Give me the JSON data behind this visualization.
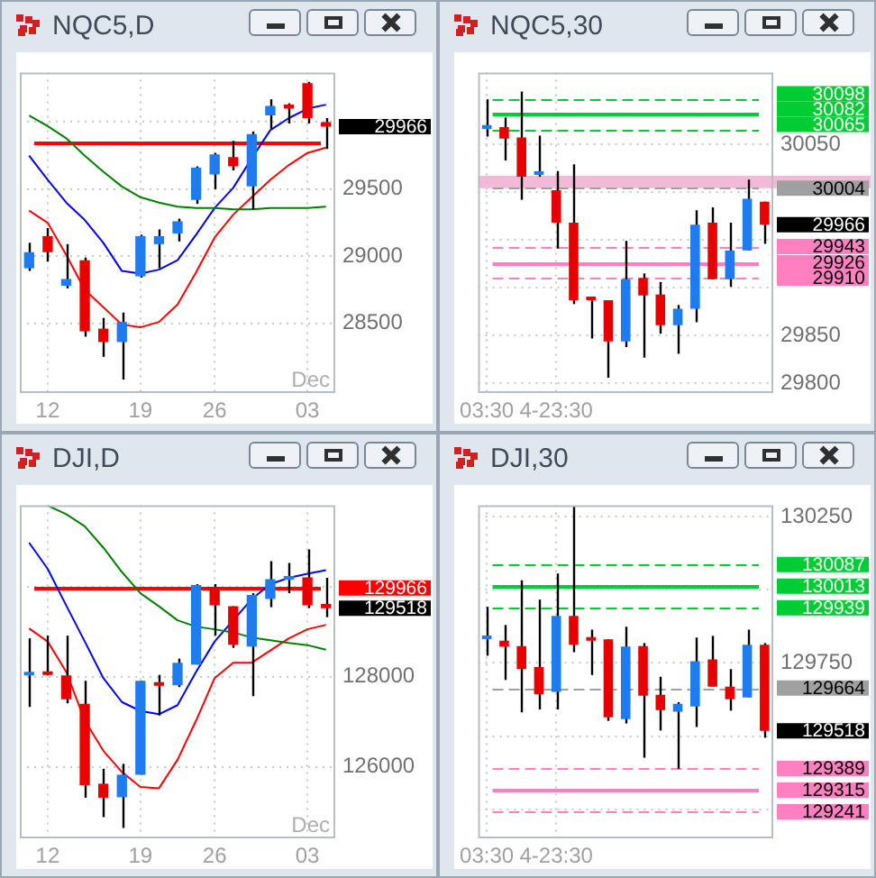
{
  "chart_data": [
    {
      "type": "candlestick",
      "title": "NQC5,D",
      "categories": [
        null,
        "12",
        null,
        null,
        null,
        null,
        "19",
        null,
        null,
        null,
        "26",
        null,
        null,
        null,
        null,
        "03",
        null
      ],
      "ohlc": [
        [
          28910,
          29100,
          28890,
          29030
        ],
        [
          29150,
          29210,
          28960,
          29030
        ],
        [
          28780,
          29090,
          28760,
          28830
        ],
        [
          28970,
          28990,
          28400,
          28440
        ],
        [
          28460,
          28540,
          28250,
          28360
        ],
        [
          28360,
          28580,
          28080,
          28510
        ],
        [
          28850,
          29160,
          28840,
          29150
        ],
        [
          29090,
          29200,
          28910,
          29150
        ],
        [
          29170,
          29280,
          29110,
          29260
        ],
        [
          29420,
          29670,
          29390,
          29660
        ],
        [
          29610,
          29770,
          29500,
          29760
        ],
        [
          29740,
          29860,
          29640,
          29670
        ],
        [
          29520,
          29930,
          29350,
          29910
        ],
        [
          30050,
          30170,
          29950,
          30120
        ],
        [
          30130,
          30140,
          29990,
          30100
        ],
        [
          30290,
          30300,
          29990,
          30030
        ],
        [
          30000,
          30030,
          29800,
          29966
        ]
      ],
      "colors": [
        "#1e7bf0",
        "#e80000",
        "#1e7bf0",
        "#e80000",
        "#e80000",
        "#1e7bf0",
        "#1e7bf0",
        "#1e7bf0",
        "#1e7bf0",
        "#1e7bf0",
        "#1e7bf0",
        "#e80000",
        "#1e7bf0",
        "#1e7bf0",
        "#e80000",
        "#e80000",
        "#e80000"
      ],
      "series": [
        {
          "type": "line",
          "color": "#008000",
          "values": [
            30050,
            29970,
            29880,
            29750,
            29630,
            29520,
            29440,
            29400,
            29370,
            29360,
            29360,
            29350,
            29350,
            29360,
            29360,
            29360,
            29370
          ]
        },
        {
          "type": "line",
          "color": "#0000ff",
          "values": [
            29750,
            29570,
            29400,
            29270,
            29100,
            28890,
            28870,
            28900,
            28970,
            29160,
            29360,
            29510,
            29730,
            29940,
            30030,
            30100,
            30130
          ]
        },
        {
          "type": "line",
          "color": "#ff0000",
          "values": [
            29340,
            29250,
            29010,
            28750,
            28620,
            28490,
            28470,
            28510,
            28640,
            28880,
            29140,
            29310,
            29440,
            29570,
            29680,
            29770,
            29810
          ]
        }
      ],
      "ylim": [
        27980,
        30370
      ],
      "yticks": [
        28500,
        29000,
        29500,
        {
          "value": 30000,
          "label": null
        }
      ],
      "grid": true,
      "value_labels": [
        null,
        null,
        null,
        null,
        null,
        null,
        null,
        null,
        null,
        null,
        null,
        null,
        null,
        null,
        null,
        null,
        "29966"
      ],
      "ref_lines": [
        {
          "axis": "y",
          "value": 29850,
          "color": "#ff0000",
          "line_style": "solid"
        }
      ],
      "annotations": [
        "Dec"
      ]
    },
    {
      "type": "candlestick",
      "title": "NQC5,30",
      "categories": [
        "03:30",
        null,
        null,
        null,
        "4-23:30",
        null,
        null,
        null,
        null,
        null,
        null,
        null,
        null,
        null,
        null,
        null,
        null
      ],
      "ohlc": [
        [
          30066,
          30097,
          30058,
          30070
        ],
        [
          30068,
          30078,
          30033,
          30056
        ],
        [
          30057,
          30105,
          29992,
          30016
        ],
        [
          30018,
          30059,
          30016,
          30021
        ],
        [
          30002,
          30022,
          29941,
          29968
        ],
        [
          29968,
          30029,
          29883,
          29887
        ],
        [
          29889,
          29889,
          29847,
          29887
        ],
        [
          29887,
          29887,
          29806,
          29844
        ],
        [
          29844,
          29949,
          29838,
          29909
        ],
        [
          29910,
          29915,
          29827,
          29892
        ],
        [
          29893,
          29906,
          29852,
          29861
        ],
        [
          29861,
          29882,
          29831,
          29878
        ],
        [
          29878,
          29981,
          29864,
          29966
        ],
        [
          29968,
          29984,
          29909,
          29909
        ],
        [
          29909,
          29968,
          29901,
          29939
        ],
        [
          29939,
          30013,
          29939,
          29993
        ],
        [
          29990,
          29990,
          29946,
          29966
        ]
      ],
      "colors": [
        "#1e7bf0",
        "#e80000",
        "#e80000",
        "#1e7bf0",
        "#e80000",
        "#e80000",
        "#e80000",
        "#e80000",
        "#1e7bf0",
        "#e80000",
        "#e80000",
        "#1e7bf0",
        "#1e7bf0",
        "#e80000",
        "#1e7bf0",
        "#1e7bf0",
        "#e80000"
      ],
      "ylim": [
        29790,
        30125
      ],
      "yticks": [
        29800,
        29850,
        {
          "value": 29900,
          "label": null
        },
        {
          "value": 29950,
          "label": null
        },
        {
          "value": 30000,
          "label": null
        },
        30050
      ],
      "grid": true,
      "ref_lines": [
        {
          "axis": "y",
          "value": 30098,
          "label": "30098",
          "color": "#00cc33",
          "line_style": "dashed"
        },
        {
          "axis": "y",
          "value": 30082,
          "label": "30082",
          "color": "#00cc33",
          "line_style": "solid"
        },
        {
          "axis": "y",
          "value": 30065,
          "label": "30065",
          "color": "#00cc33",
          "line_style": "dashed"
        },
        {
          "axis": "y",
          "value": 30004,
          "label": "30004",
          "color": "#a0a0a0",
          "line_style": "dashed"
        },
        {
          "axis": "y",
          "value": 29943,
          "label": "29943",
          "color": "#ff80c0",
          "line_style": "dashed"
        },
        {
          "axis": "y",
          "value": 29926,
          "label": "29926",
          "color": "#ff80c0",
          "line_style": "solid"
        },
        {
          "axis": "y",
          "value": 29910,
          "label": "29910",
          "color": "#ff80c0",
          "line_style": "dashed"
        }
      ],
      "value_labels": [
        null,
        null,
        null,
        null,
        null,
        null,
        null,
        null,
        null,
        null,
        null,
        null,
        null,
        null,
        null,
        null,
        "29966"
      ],
      "bands": [
        {
          "axis": "y",
          "from": 30004,
          "to": 30017,
          "color": "#f0a8cc"
        }
      ]
    },
    {
      "type": "candlestick",
      "title": "DJI,D",
      "categories": [
        null,
        "12",
        null,
        null,
        null,
        null,
        "19",
        null,
        null,
        null,
        "26",
        null,
        null,
        null,
        null,
        "03",
        null
      ],
      "ohlc": [
        [
          128030,
          128850,
          127330,
          128080
        ],
        [
          128090,
          128910,
          128030,
          128040
        ],
        [
          128030,
          128910,
          127410,
          127500
        ],
        [
          127400,
          127910,
          125320,
          125600
        ],
        [
          125630,
          125960,
          124890,
          125320
        ],
        [
          125330,
          126070,
          124650,
          125830
        ],
        [
          125830,
          127910,
          125830,
          127910
        ],
        [
          127850,
          128040,
          127140,
          127800
        ],
        [
          127810,
          128400,
          127770,
          128310
        ],
        [
          128270,
          130050,
          128270,
          130030
        ],
        [
          129990,
          130050,
          128910,
          129580
        ],
        [
          129560,
          129560,
          128640,
          128710
        ],
        [
          128670,
          129850,
          127570,
          129810
        ],
        [
          129720,
          130560,
          129540,
          130160
        ],
        [
          130150,
          130520,
          129850,
          130200
        ],
        [
          130200,
          130820,
          129520,
          129580
        ],
        [
          129610,
          130190,
          129320,
          129518
        ]
      ],
      "colors": [
        "#1e7bf0",
        "#e80000",
        "#e80000",
        "#e80000",
        "#e80000",
        "#1e7bf0",
        "#1e7bf0",
        "#e80000",
        "#1e7bf0",
        "#1e7bf0",
        "#e80000",
        "#e80000",
        "#1e7bf0",
        "#1e7bf0",
        "#1e7bf0",
        "#e80000",
        "#e80000"
      ],
      "series": [
        {
          "type": "line",
          "color": "#008000",
          "values": [
            null,
            131790,
            131600,
            131330,
            130860,
            130320,
            129850,
            129560,
            129250,
            129110,
            129050,
            128980,
            128870,
            128810,
            128750,
            128700,
            128600
          ]
        },
        {
          "type": "line",
          "color": "#0000ff",
          "values": [
            130970,
            130390,
            129580,
            128780,
            127970,
            127440,
            127240,
            127170,
            127370,
            128110,
            128780,
            129250,
            129720,
            130050,
            130190,
            130280,
            130360
          ]
        },
        {
          "type": "line",
          "color": "#ff0000",
          "values": [
            129070,
            128780,
            128110,
            127030,
            126360,
            125890,
            125560,
            125530,
            126160,
            127030,
            127970,
            128310,
            128310,
            128580,
            128850,
            129050,
            129150
          ]
        }
      ],
      "ylim": [
        124420,
        131800
      ],
      "yticks": [
        126000,
        128000,
        {
          "value": 130000,
          "label": null
        }
      ],
      "grid": true,
      "ref_lines": [
        {
          "axis": "y",
          "value": 129966,
          "label": "129966",
          "color": "#ff0000",
          "line_style": "solid"
        }
      ],
      "value_labels": [
        null,
        null,
        null,
        null,
        null,
        null,
        null,
        null,
        null,
        null,
        null,
        null,
        null,
        null,
        null,
        null,
        "129518"
      ],
      "annotations": [
        "Dec"
      ]
    },
    {
      "type": "candlestick",
      "title": "DJI,30",
      "categories": [
        "03:30",
        null,
        null,
        null,
        "4-23:30",
        null,
        null,
        null,
        null,
        null,
        null,
        null,
        null,
        null,
        null,
        null,
        null
      ],
      "ohlc": [
        [
          129832,
          129942,
          129775,
          129842
        ],
        [
          129826,
          129880,
          129692,
          129806
        ],
        [
          129808,
          130033,
          129581,
          129729
        ],
        [
          129736,
          129967,
          129591,
          129643
        ],
        [
          129651,
          130056,
          129591,
          129911
        ],
        [
          129911,
          130285,
          129787,
          129812
        ],
        [
          129836,
          129864,
          129709,
          129826
        ],
        [
          129831,
          129831,
          129552,
          129564
        ],
        [
          129558,
          129874,
          129543,
          129806
        ],
        [
          129808,
          129818,
          129426,
          129638
        ],
        [
          129641,
          129703,
          129519,
          129589
        ],
        [
          129583,
          129616,
          129388,
          129610
        ],
        [
          129601,
          129837,
          129531,
          129756
        ],
        [
          129762,
          129843,
          129669,
          129669
        ],
        [
          129669,
          129729,
          129587,
          129626
        ],
        [
          129632,
          129864,
          129632,
          129812
        ],
        [
          129812,
          129818,
          129494,
          129518
        ]
      ],
      "colors": [
        "#1e7bf0",
        "#e80000",
        "#e80000",
        "#e80000",
        "#1e7bf0",
        "#e80000",
        "#e80000",
        "#e80000",
        "#1e7bf0",
        "#e80000",
        "#e80000",
        "#1e7bf0",
        "#1e7bf0",
        "#e80000",
        "#e80000",
        "#1e7bf0",
        "#e80000"
      ],
      "ylim": [
        129150,
        130290
      ],
      "yticks": [
        {
          "value": 129250,
          "label": null
        },
        {
          "value": 129500,
          "label": null
        },
        129750,
        {
          "value": 130000,
          "label": null
        },
        130250
      ],
      "grid": true,
      "ref_lines": [
        {
          "axis": "y",
          "value": 130087,
          "label": "130087",
          "color": "#00cc33",
          "line_style": "dashed"
        },
        {
          "axis": "y",
          "value": 130013,
          "label": "130013",
          "color": "#00cc33",
          "line_style": "solid"
        },
        {
          "axis": "y",
          "value": 129939,
          "label": "129939",
          "color": "#00cc33",
          "line_style": "dashed"
        },
        {
          "axis": "y",
          "value": 129664,
          "label": "129664",
          "color": "#a0a0a0",
          "line_style": "dashed"
        },
        {
          "axis": "y",
          "value": 129389,
          "label": "129389",
          "color": "#ff80c0",
          "line_style": "dashed"
        },
        {
          "axis": "y",
          "value": 129315,
          "label": "129315",
          "color": "#ff80c0",
          "line_style": "solid"
        },
        {
          "axis": "y",
          "value": 129241,
          "label": "129241",
          "color": "#ff80c0",
          "line_style": "dashed"
        }
      ],
      "value_labels": [
        null,
        null,
        null,
        null,
        null,
        null,
        null,
        null,
        null,
        null,
        null,
        null,
        null,
        null,
        null,
        null,
        "129518"
      ]
    }
  ]
}
